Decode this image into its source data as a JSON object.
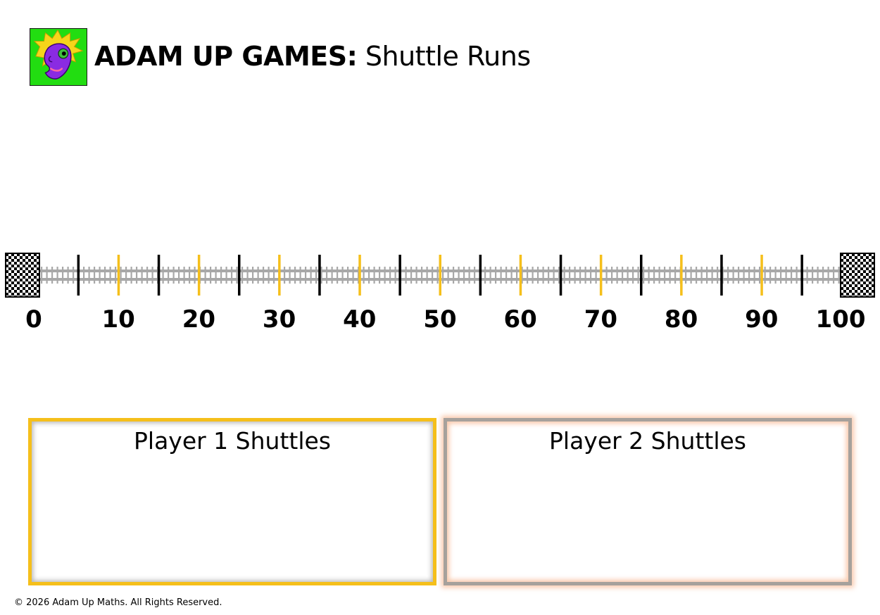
{
  "header": {
    "brand": "ADAM UP GAMES:",
    "subtitle": "Shuttle Runs",
    "logo_icon": "spiky-haired-creature-logo-icon"
  },
  "track": {
    "start": 0,
    "end": 100,
    "labels": [
      "0",
      "10",
      "20",
      "30",
      "40",
      "50",
      "60",
      "70",
      "80",
      "90",
      "100"
    ],
    "major_tick_step": 10,
    "minor_tick_step": 5,
    "major_tick_color": "#f5bf1b",
    "minor_tick_color": "#000000",
    "rail_color": "#a8a8a8",
    "end_markers": "checkered-flag-icon"
  },
  "panels": [
    {
      "title": "Player 1 Shuttles",
      "border_color": "#f5bf1b"
    },
    {
      "title": "Player 2 Shuttles",
      "border_color": "#a6a19c",
      "glow_color": "#f7ba96"
    }
  ],
  "footer": {
    "copyright": "© 2026 Adam Up Maths. All Rights Reserved."
  }
}
